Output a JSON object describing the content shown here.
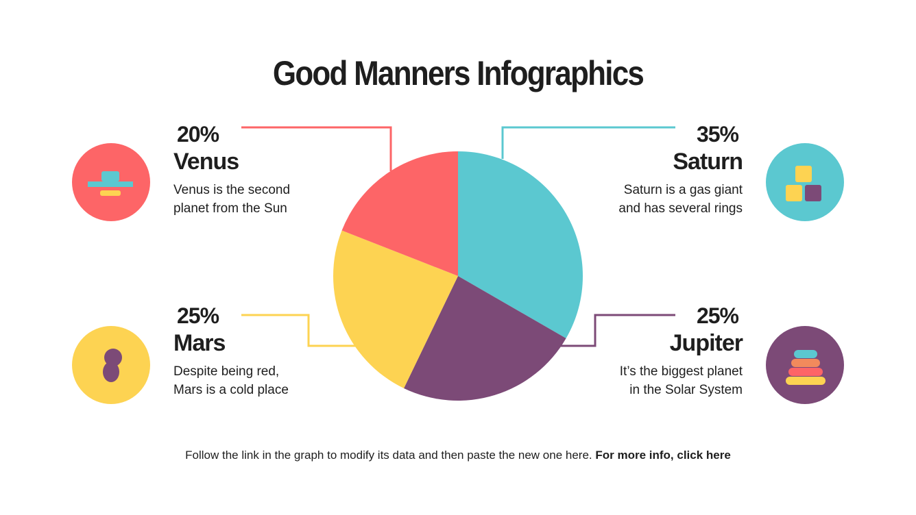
{
  "chart_data": {
    "type": "pie",
    "title": "Good Manners Infographics",
    "categories": [
      "Saturn",
      "Jupiter",
      "Mars",
      "Venus"
    ],
    "values": [
      35,
      25,
      25,
      20
    ],
    "value_labels": [
      "35%",
      "25%",
      "25%",
      "20%"
    ],
    "colors": [
      "#5bc8d0",
      "#7c4a77",
      "#fdd352",
      "#fd6567"
    ],
    "descriptions": [
      "Saturn is a gas giant\nand has several rings",
      "It’s the biggest planet\nin the Solar System",
      "Despite being red,\nMars is a cold place",
      "Venus is the second\nplanet from the Sun"
    ]
  },
  "footer": {
    "text": "Follow the link in the graph to modify its data and then paste the new one here.",
    "link": "For more info, click here"
  }
}
